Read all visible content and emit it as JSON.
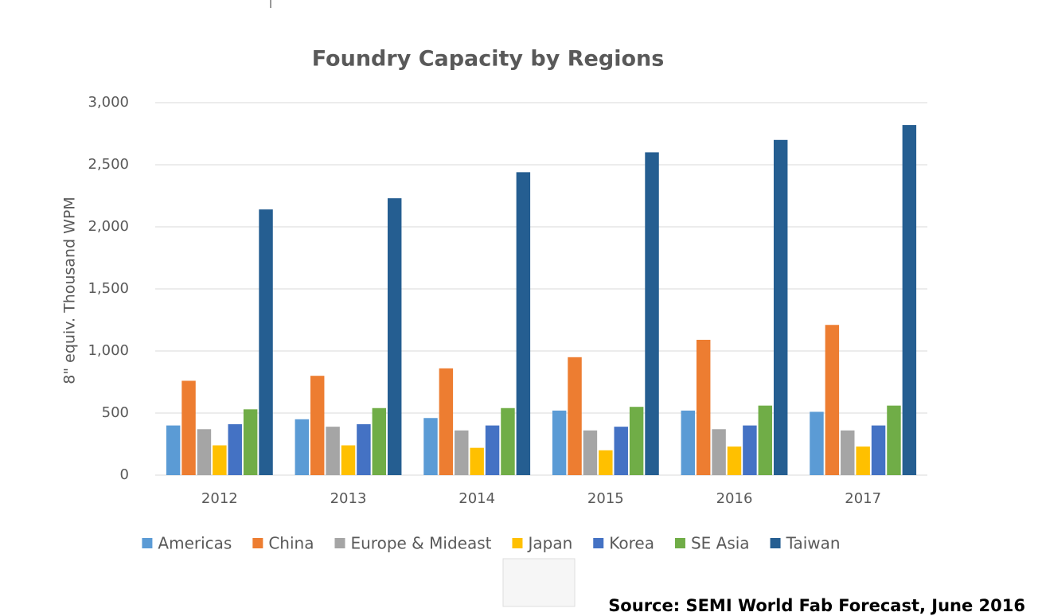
{
  "chart_data": {
    "type": "bar",
    "title": "Foundry Capacity by Regions",
    "y_label": "8\" equiv. Thousand WPM",
    "categories": [
      "2012",
      "2013",
      "2014",
      "2015",
      "2016",
      "2017"
    ],
    "series": [
      {
        "name": "Americas",
        "color": "#5b9bd5",
        "values": [
          400,
          450,
          460,
          520,
          520,
          510
        ]
      },
      {
        "name": "China",
        "color": "#ed7d31",
        "values": [
          760,
          800,
          860,
          950,
          1090,
          1210
        ]
      },
      {
        "name": "Europe & Mideast",
        "color": "#a5a5a5",
        "values": [
          370,
          390,
          360,
          360,
          370,
          360
        ]
      },
      {
        "name": "Japan",
        "color": "#ffc000",
        "values": [
          240,
          240,
          220,
          200,
          230,
          230
        ]
      },
      {
        "name": "Korea",
        "color": "#4472c4",
        "values": [
          410,
          410,
          400,
          390,
          400,
          400
        ]
      },
      {
        "name": "SE Asia",
        "color": "#70ad47",
        "values": [
          530,
          540,
          540,
          550,
          560,
          560
        ]
      },
      {
        "name": "Taiwan",
        "color": "#255e91",
        "values": [
          2140,
          2230,
          2440,
          2600,
          2700,
          2820
        ]
      }
    ],
    "ylim": [
      0,
      3000
    ],
    "yticks": [
      0,
      500,
      {
        "value": 1000,
        "label": "1,000"
      },
      {
        "value": 1500,
        "label": "1,500"
      },
      {
        "value": 2000,
        "label": "2,000"
      },
      {
        "value": 2500,
        "label": "2,500"
      },
      {
        "value": 3000,
        "label": "3,000"
      }
    ],
    "grid": true,
    "legend": "bottom",
    "source": "Source: SEMI World Fab Forecast, June 2016"
  }
}
